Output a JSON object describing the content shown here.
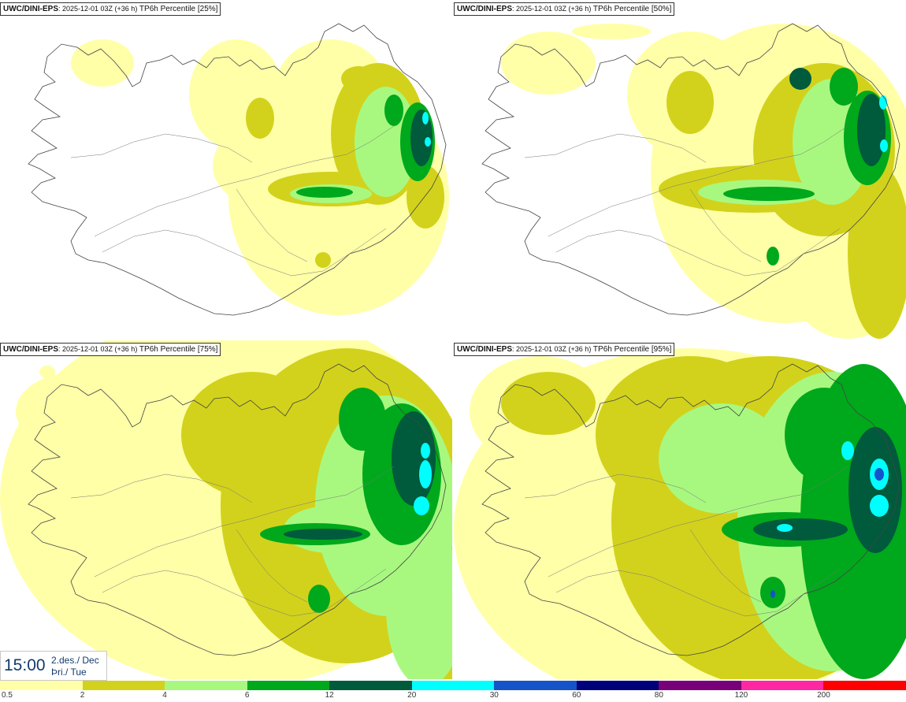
{
  "panels": [
    {
      "title_bold": "UWC/DINI-EPS",
      "title_meta": ": 2025-12-01 03Z (+36 h)",
      "title_rest": " TP6h Percentile [25%]"
    },
    {
      "title_bold": "UWC/DINI-EPS",
      "title_meta": ": 2025-12-01 03Z (+36 h)",
      "title_rest": " TP6h Percentile [50%]"
    },
    {
      "title_bold": "UWC/DINI-EPS",
      "title_meta": ": 2025-12-01 03Z (+36 h)",
      "title_rest": " TP6h Percentile [75%]"
    },
    {
      "title_bold": "UWC/DINI-EPS",
      "title_meta": ": 2025-12-01 03Z (+36 h)",
      "title_rest": " TP6h Percentile [95%]"
    }
  ],
  "valid_time": {
    "time": "15:00",
    "date_line": "2.des./ Dec",
    "day_line": "Þri./ Tue"
  },
  "legend": {
    "labels": [
      "0.5",
      "2",
      "4",
      "6",
      "12",
      "20",
      "30",
      "60",
      "80",
      "120",
      "200"
    ],
    "colors": [
      "#ffffa8",
      "#d2d21c",
      "#a8f880",
      "#00a81c",
      "#005a3c",
      "#00ffff",
      "#1454c8",
      "#000078",
      "#780078",
      "#ff28a0",
      "#ff0000"
    ]
  },
  "fill_colors": {
    "light": "#ffffa8",
    "olive": "#d2d21c",
    "lightgreen": "#a8f880",
    "green": "#00a81c",
    "darkgreen": "#005a3c",
    "cyan": "#00ffff",
    "blue": "#1454c8"
  }
}
